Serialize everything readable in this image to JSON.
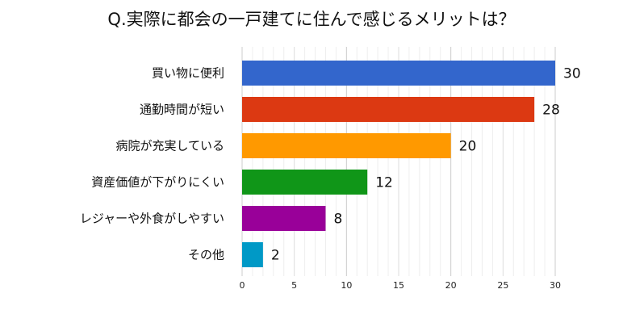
{
  "chart_data": {
    "type": "bar",
    "orientation": "horizontal",
    "title": "Q.実際に都会の一戸建てに住んで感じるメリットは？",
    "categories": [
      "買い物に便利",
      "通勤時間が短い",
      "病院が充実している",
      "資産価値が下がりにくい",
      "レジャーや外食がしやすい",
      "その他"
    ],
    "values": [
      30,
      28,
      20,
      12,
      8,
      2
    ],
    "colors": [
      "#3366cc",
      "#dc3912",
      "#ff9900",
      "#109618",
      "#990099",
      "#0099c6"
    ],
    "xlim": [
      0,
      30
    ],
    "xticks": [
      0,
      5,
      10,
      15,
      20,
      25,
      30
    ],
    "grid": true,
    "xlabel": "",
    "ylabel": ""
  }
}
